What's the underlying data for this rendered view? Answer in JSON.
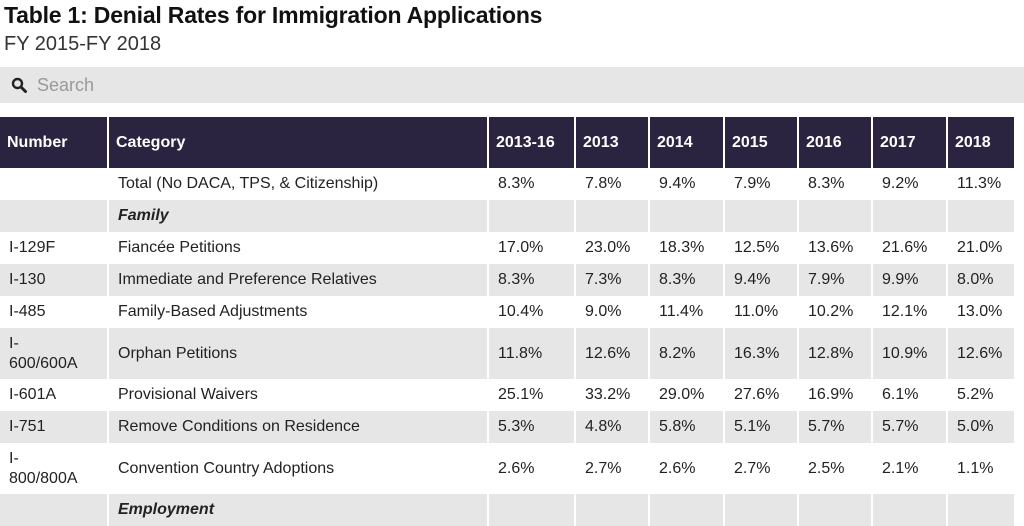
{
  "title": "Table 1: Denial Rates for Immigration Applications",
  "subtitle": "FY 2015-FY 2018",
  "search": {
    "placeholder": "Search",
    "icon": "search-icon"
  },
  "colors": {
    "header_bg": "#2a2440",
    "stripe": "#e6e6e6"
  },
  "table": {
    "headers": [
      "Number",
      "Category",
      "2013-16",
      "2013",
      "2014",
      "2015",
      "2016",
      "2017",
      "2018"
    ],
    "rows": [
      {
        "number": "",
        "category": "Total (No DACA, TPS, & Citizenship)",
        "values": [
          "8.3%",
          "7.8%",
          "9.4%",
          "7.9%",
          "8.3%",
          "9.2%",
          "11.3%"
        ]
      },
      {
        "number": "",
        "category": "Family",
        "section": true,
        "values": [
          "",
          "",
          "",
          "",
          "",
          "",
          ""
        ]
      },
      {
        "number": "I-129F",
        "category": "Fiancée Petitions",
        "values": [
          "17.0%",
          "23.0%",
          "18.3%",
          "12.5%",
          "13.6%",
          "21.6%",
          "21.0%"
        ]
      },
      {
        "number": "I-130",
        "category": "Immediate and Preference Relatives",
        "values": [
          "8.3%",
          "7.3%",
          "8.3%",
          "9.4%",
          "7.9%",
          "9.9%",
          "8.0%"
        ]
      },
      {
        "number": "I-485",
        "category": "Family-Based Adjustments",
        "values": [
          "10.4%",
          "9.0%",
          "11.4%",
          "11.0%",
          "10.2%",
          "12.1%",
          "13.0%"
        ]
      },
      {
        "number": "I-600/600A",
        "category": "Orphan Petitions",
        "values": [
          "11.8%",
          "12.6%",
          "8.2%",
          "16.3%",
          "12.8%",
          "10.9%",
          "12.6%"
        ]
      },
      {
        "number": "I-601A",
        "category": "Provisional Waivers",
        "values": [
          "25.1%",
          "33.2%",
          "29.0%",
          "27.6%",
          "16.9%",
          "6.1%",
          "5.2%"
        ]
      },
      {
        "number": "I-751",
        "category": "Remove Conditions on Residence",
        "values": [
          "5.3%",
          "4.8%",
          "5.8%",
          "5.1%",
          "5.7%",
          "5.7%",
          "5.0%"
        ]
      },
      {
        "number": "I-800/800A",
        "category": "Convention Country Adoptions",
        "values": [
          "2.6%",
          "2.7%",
          "2.6%",
          "2.7%",
          "2.5%",
          "2.1%",
          "1.1%"
        ]
      },
      {
        "number": "",
        "category": "Employment",
        "section": true,
        "values": [
          "",
          "",
          "",
          "",
          "",
          "",
          ""
        ]
      }
    ]
  }
}
